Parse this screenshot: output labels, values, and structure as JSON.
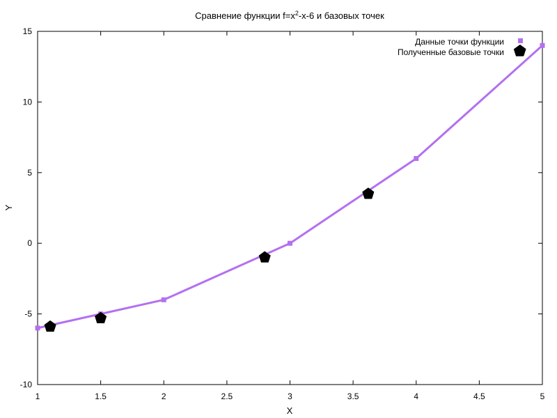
{
  "chart_data": {
    "type": "line",
    "title_prefix": "Сравнение функции f=x",
    "title_sup": "2",
    "title_suffix": "-x-6 и базовых точек",
    "xlabel": "X",
    "ylabel": "Y",
    "xlim": [
      1,
      5
    ],
    "ylim": [
      -10,
      15
    ],
    "xticks": [
      "1",
      "1.5",
      "2",
      "2.5",
      "3",
      "3.5",
      "4",
      "4.5",
      "5"
    ],
    "yticks": [
      "-10",
      "-5",
      "0",
      "5",
      "10",
      "15"
    ],
    "grid": false,
    "legend_position": "top-right",
    "series": [
      {
        "name": "Данные точки функции",
        "color": "#b370f0",
        "marker": "square",
        "points": [
          [
            1,
            -6
          ],
          [
            1.5,
            -5
          ],
          [
            2,
            -4
          ],
          [
            3,
            0
          ],
          [
            4,
            6
          ],
          [
            5,
            14
          ]
        ]
      },
      {
        "name": "Полученные базовые точки",
        "color": "#000000",
        "marker": "pentagon",
        "points": [
          [
            1.1,
            -5.9
          ],
          [
            1.5,
            -5.3
          ],
          [
            2.8,
            -1.0
          ],
          [
            3.62,
            3.5
          ],
          [
            4.82,
            13.6
          ]
        ]
      }
    ]
  }
}
